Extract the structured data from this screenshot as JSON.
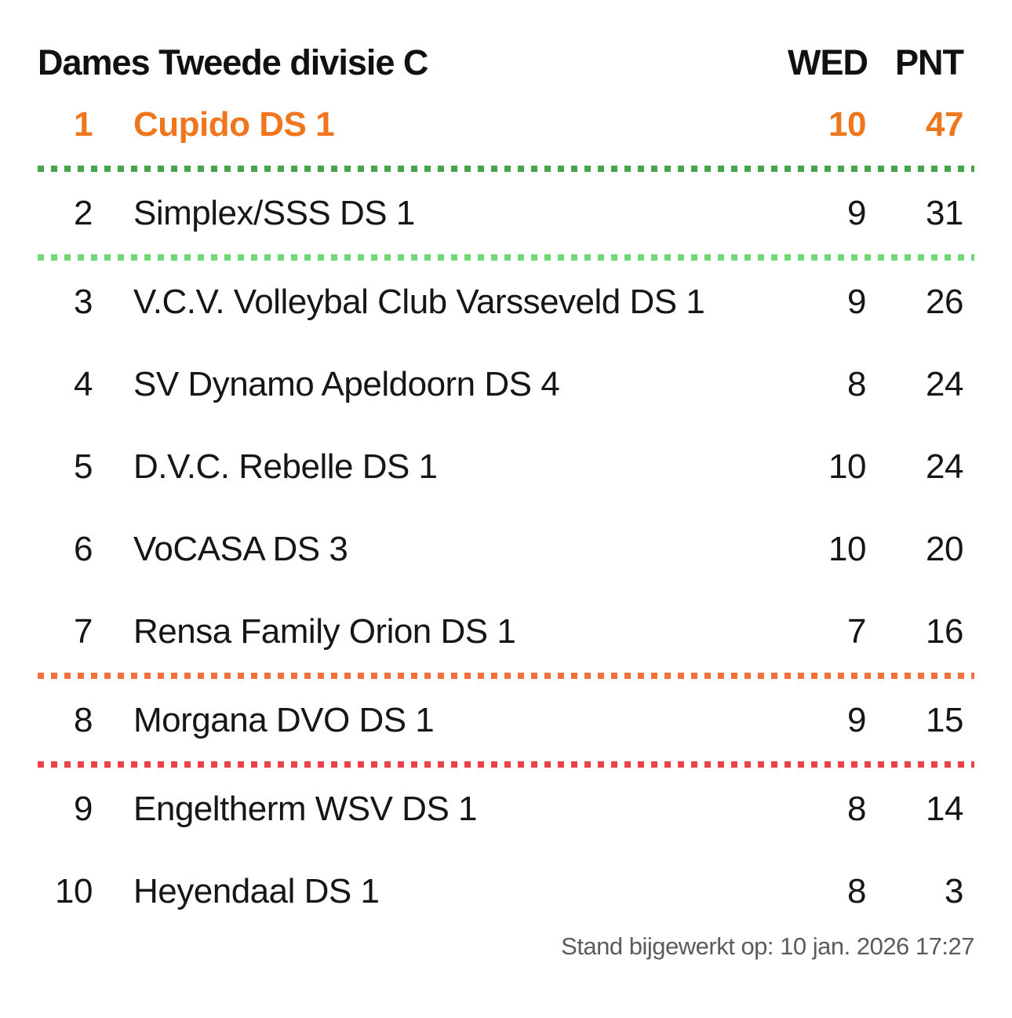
{
  "header": {
    "title": "Dames Tweede divisie C",
    "col_wed": "WED",
    "col_pnt": "PNT"
  },
  "standings": [
    {
      "rank": "1",
      "team": "Cupido DS 1",
      "wed": "10",
      "pnt": "47"
    },
    {
      "rank": "2",
      "team": "Simplex/SSS DS 1",
      "wed": "9",
      "pnt": "31"
    },
    {
      "rank": "3",
      "team": "V.C.V. Volleybal Club Varsseveld DS 1",
      "wed": "9",
      "pnt": "26"
    },
    {
      "rank": "4",
      "team": "SV Dynamo Apeldoorn DS 4",
      "wed": "8",
      "pnt": "24"
    },
    {
      "rank": "5",
      "team": "D.V.C. Rebelle DS 1",
      "wed": "10",
      "pnt": "24"
    },
    {
      "rank": "6",
      "team": "VoCASA DS 3",
      "wed": "10",
      "pnt": "20"
    },
    {
      "rank": "7",
      "team": "Rensa Family Orion DS 1",
      "wed": "7",
      "pnt": "16"
    },
    {
      "rank": "8",
      "team": "Morgana DVO DS 1",
      "wed": "9",
      "pnt": "15"
    },
    {
      "rank": "9",
      "team": "Engeltherm WSV DS 1",
      "wed": "8",
      "pnt": "14"
    },
    {
      "rank": "10",
      "team": "Heyendaal DS 1",
      "wed": "8",
      "pnt": "3"
    }
  ],
  "separators": [
    {
      "after_rank": "1",
      "color": "#46A54B"
    },
    {
      "after_rank": "2",
      "color": "#70D876"
    },
    {
      "after_rank": "7",
      "color": "#F2713B"
    },
    {
      "after_rank": "8",
      "color": "#EC4247"
    }
  ],
  "colors": {
    "highlight_orange": "#F0761E",
    "text_black": "#161616",
    "footer_gray": "#5C5C5C",
    "line_green_dark": "#46A54B",
    "line_green_light": "#70D876",
    "line_orange": "#F2713B",
    "line_red": "#EC4247",
    "background": "#FFFFFF"
  },
  "footer": {
    "updated": "Stand bijgewerkt op: 10 jan. 2026 17:27"
  }
}
